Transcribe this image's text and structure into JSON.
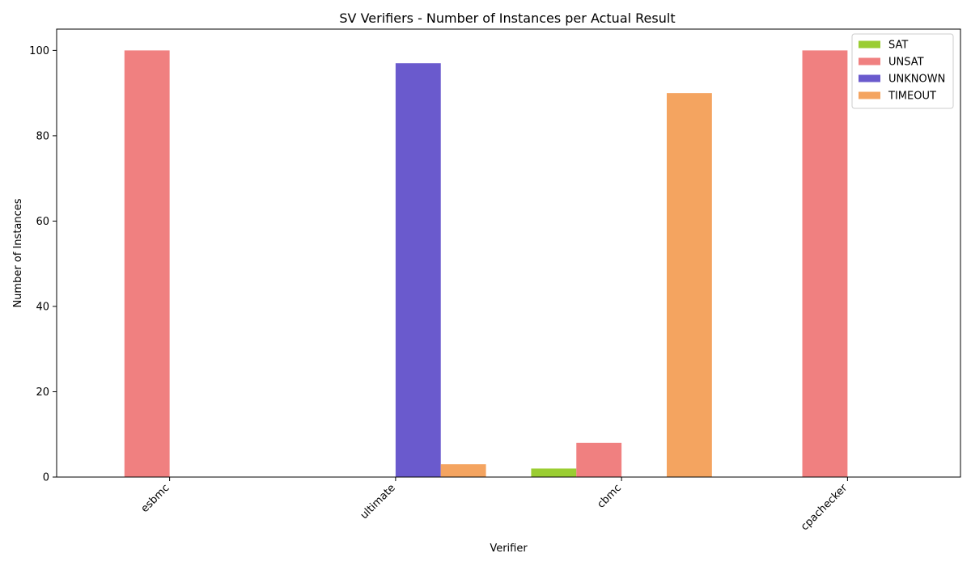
{
  "chart_data": {
    "type": "bar",
    "title": "SV Verifiers - Number of Instances per Actual Result",
    "xlabel": "Verifier",
    "ylabel": "Number of Instances",
    "categories": [
      "esbmc",
      "ultimate",
      "cbmc",
      "cpachecker"
    ],
    "ylim": [
      0,
      105
    ],
    "yticks": [
      0,
      20,
      40,
      60,
      80,
      100
    ],
    "legend_position": "top-right",
    "grid": false,
    "series": [
      {
        "name": "SAT",
        "color": "#9acd32",
        "values": [
          0,
          0,
          2,
          0
        ]
      },
      {
        "name": "UNSAT",
        "color": "#f08080",
        "values": [
          100,
          0,
          8,
          100
        ]
      },
      {
        "name": "UNKNOWN",
        "color": "#6a5acd",
        "values": [
          0,
          97,
          0,
          0
        ]
      },
      {
        "name": "TIMEOUT",
        "color": "#f4a460",
        "values": [
          0,
          3,
          90,
          0
        ]
      }
    ]
  }
}
